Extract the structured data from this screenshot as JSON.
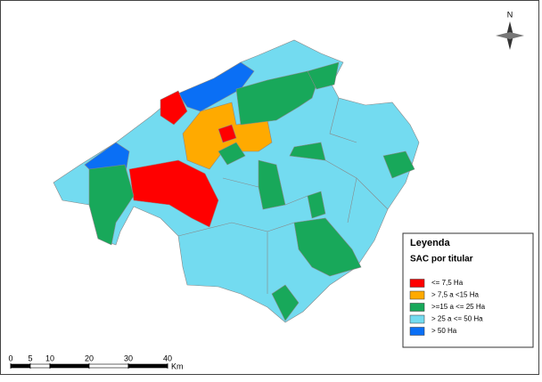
{
  "north": "N",
  "legend": {
    "title": "Leyenda",
    "subtitle": "SAC por titular",
    "items": [
      {
        "label": "<= 7,5 Ha",
        "color": "#ff0000"
      },
      {
        "label": "> 7,5 a <15 Ha",
        "color": "#ffaa00"
      },
      {
        "label": ">=15 a <= 25 Ha",
        "color": "#18a85a"
      },
      {
        "label": "> 25 a <= 50 Ha",
        "color": "#73dbf0"
      },
      {
        "label": "> 50 Ha",
        "color": "#0a6ff5"
      }
    ]
  },
  "scale": {
    "ticks": [
      0,
      5,
      10,
      20,
      30,
      40
    ],
    "unit": "Km"
  }
}
